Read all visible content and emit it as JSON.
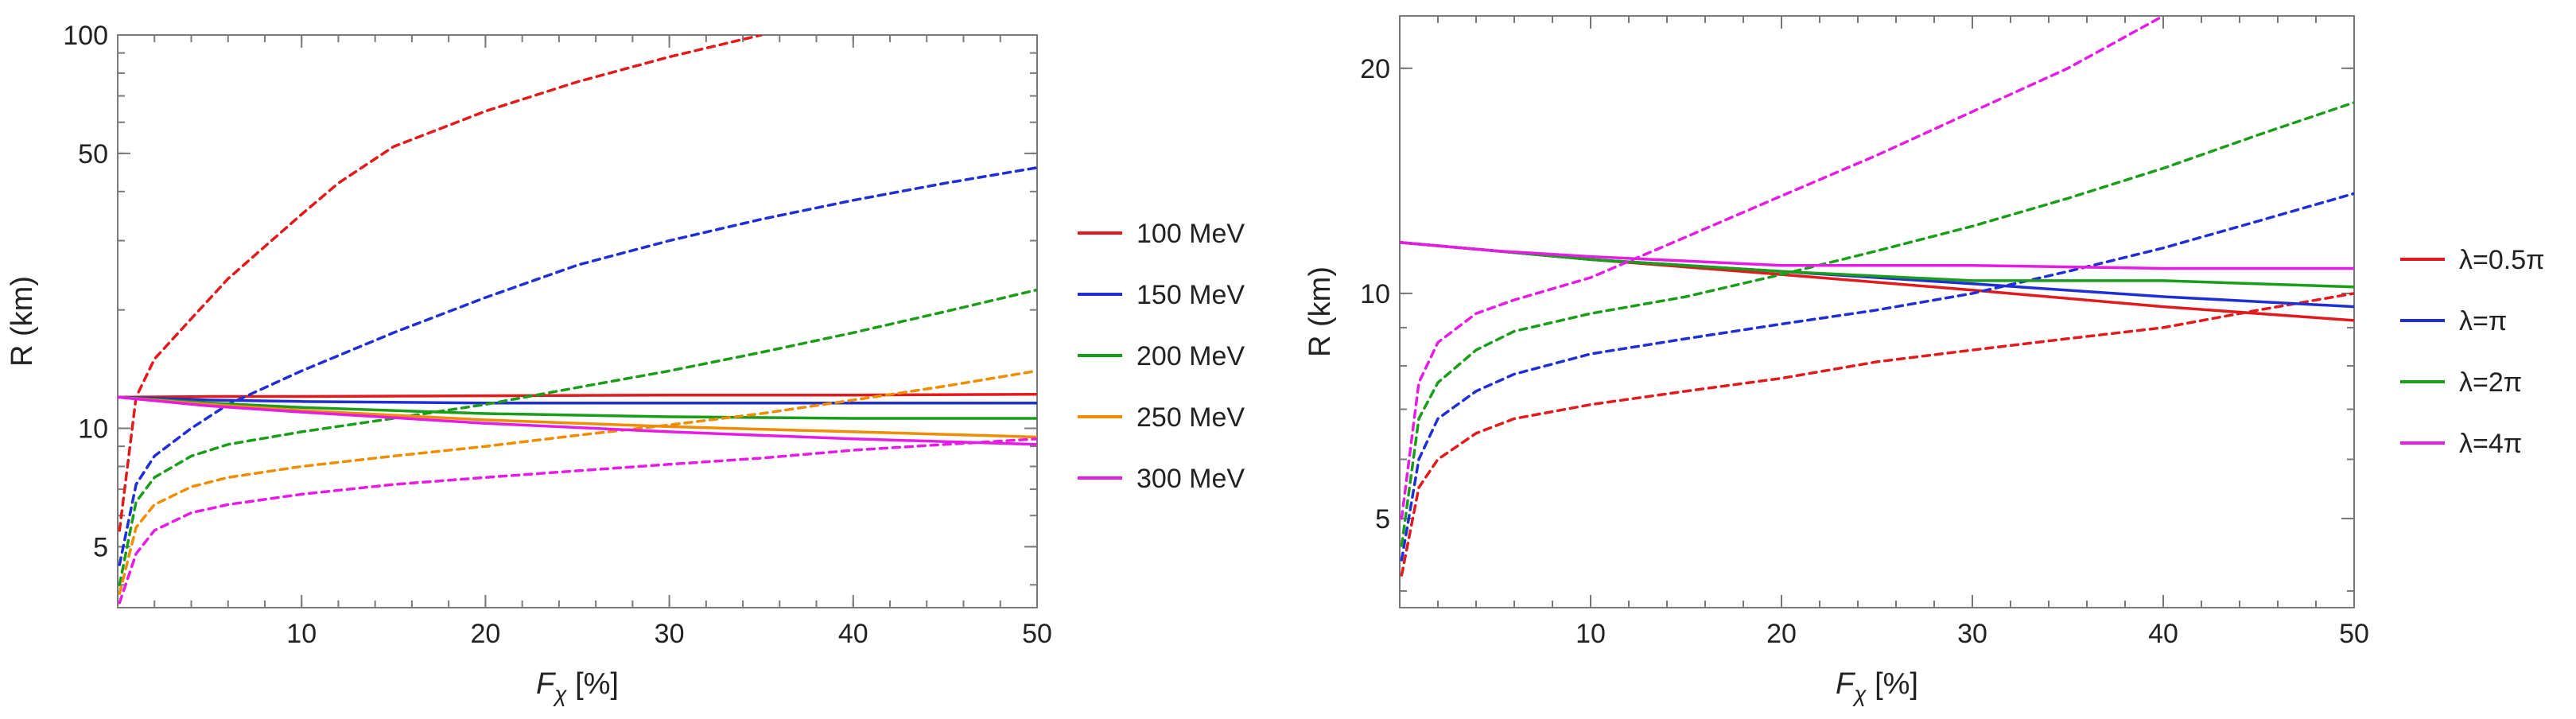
{
  "chart_data": [
    {
      "type": "line",
      "yscale": "log",
      "xlabel_main": "F",
      "xlabel_sub": "χ",
      "xlabel_unit": " [%]",
      "ylabel": "R (km)",
      "xlim": [
        0,
        50
      ],
      "ylim": [
        3.5,
        100
      ],
      "xticks": [
        10,
        20,
        30,
        40,
        50
      ],
      "xtick_labels": [
        "10",
        "20",
        "30",
        "40",
        "50"
      ],
      "yticks": [
        5,
        10,
        50,
        100
      ],
      "ytick_labels": [
        "5",
        "10",
        "50",
        "100"
      ],
      "legend_position": "right",
      "series": [
        {
          "name": "100 MeV",
          "color": "#e31a1c",
          "style": "solid",
          "x": [
            0,
            5,
            10,
            20,
            30,
            40,
            50
          ],
          "y": [
            12.0,
            12.05,
            12.05,
            12.1,
            12.15,
            12.15,
            12.2
          ]
        },
        {
          "name": "100 MeV",
          "color": "#e31a1c",
          "style": "dashed",
          "x": [
            0.1,
            1,
            2,
            4,
            6,
            8,
            10,
            12,
            15,
            20,
            25,
            30,
            35
          ],
          "y": [
            5.5,
            12,
            15,
            19,
            24,
            29,
            35,
            42,
            52,
            64,
            76,
            88,
            100
          ]
        },
        {
          "name": "150 MeV",
          "color": "#1f2fd6",
          "style": "solid",
          "x": [
            0,
            5,
            10,
            20,
            30,
            40,
            50
          ],
          "y": [
            12.0,
            11.8,
            11.7,
            11.6,
            11.6,
            11.6,
            11.6
          ]
        },
        {
          "name": "150 MeV",
          "color": "#1f2fd6",
          "style": "dashed",
          "x": [
            0.1,
            1,
            2,
            4,
            6,
            10,
            15,
            20,
            25,
            30,
            35,
            40,
            45,
            50
          ],
          "y": [
            4.5,
            7.2,
            8.5,
            10,
            11.5,
            14,
            17.5,
            21.5,
            26,
            30,
            34,
            38,
            42,
            46
          ]
        },
        {
          "name": "200 MeV",
          "color": "#1a9e1a",
          "style": "solid",
          "x": [
            0,
            5,
            10,
            20,
            30,
            40,
            50
          ],
          "y": [
            12.0,
            11.6,
            11.3,
            10.9,
            10.7,
            10.6,
            10.6
          ]
        },
        {
          "name": "200 MeV",
          "color": "#1a9e1a",
          "style": "dashed",
          "x": [
            0.1,
            1,
            2,
            4,
            6,
            10,
            15,
            20,
            25,
            30,
            35,
            40,
            45,
            50
          ],
          "y": [
            4.0,
            6.5,
            7.5,
            8.5,
            9.1,
            9.8,
            10.6,
            11.5,
            12.7,
            14.0,
            15.6,
            17.5,
            19.8,
            22.5
          ]
        },
        {
          "name": "250 MeV",
          "color": "#f08c00",
          "style": "solid",
          "x": [
            0,
            5,
            10,
            20,
            30,
            40,
            50
          ],
          "y": [
            12.0,
            11.5,
            11.1,
            10.5,
            10.1,
            9.8,
            9.5
          ]
        },
        {
          "name": "250 MeV",
          "color": "#f08c00",
          "style": "dashed",
          "x": [
            0.1,
            1,
            2,
            4,
            6,
            10,
            15,
            20,
            25,
            30,
            35,
            40,
            45,
            50
          ],
          "y": [
            3.8,
            5.6,
            6.4,
            7.1,
            7.5,
            8.0,
            8.5,
            9.0,
            9.6,
            10.2,
            10.9,
            11.8,
            12.8,
            14.0
          ]
        },
        {
          "name": "300 MeV",
          "color": "#e61ce6",
          "style": "solid",
          "x": [
            0,
            5,
            10,
            20,
            30,
            40,
            50
          ],
          "y": [
            12.0,
            11.4,
            11.0,
            10.3,
            9.8,
            9.4,
            9.1
          ]
        },
        {
          "name": "300 MeV",
          "color": "#e61ce6",
          "style": "dashed",
          "x": [
            0.1,
            1,
            2,
            4,
            6,
            10,
            15,
            20,
            25,
            30,
            35,
            40,
            45,
            50
          ],
          "y": [
            3.6,
            4.8,
            5.5,
            6.1,
            6.4,
            6.8,
            7.2,
            7.5,
            7.8,
            8.1,
            8.4,
            8.8,
            9.1,
            9.4
          ]
        }
      ],
      "legend": [
        {
          "label": "100 MeV",
          "color": "#e31a1c"
        },
        {
          "label": "150 MeV",
          "color": "#1f2fd6"
        },
        {
          "label": "200 MeV",
          "color": "#1a9e1a"
        },
        {
          "label": "250 MeV",
          "color": "#f08c00"
        },
        {
          "label": "300 MeV",
          "color": "#e61ce6"
        }
      ]
    },
    {
      "type": "line",
      "yscale": "log",
      "xlabel_main": "F",
      "xlabel_sub": "χ",
      "xlabel_unit": " [%]",
      "ylabel": "R (km)",
      "xlim": [
        0,
        50
      ],
      "ylim": [
        3.8,
        23.5
      ],
      "xticks": [
        10,
        20,
        30,
        40,
        50
      ],
      "xtick_labels": [
        "10",
        "20",
        "30",
        "40",
        "50"
      ],
      "yticks": [
        5,
        10,
        20
      ],
      "ytick_labels": [
        "5",
        "10",
        "20"
      ],
      "legend_position": "right",
      "series": [
        {
          "name": "λ=0.5π",
          "color": "#e31a1c",
          "style": "solid",
          "x": [
            0,
            5,
            10,
            20,
            30,
            40,
            50
          ],
          "y": [
            11.7,
            11.4,
            11.1,
            10.6,
            10.1,
            9.6,
            9.2
          ]
        },
        {
          "name": "λ=0.5π",
          "color": "#e31a1c",
          "style": "dashed",
          "x": [
            0.1,
            1,
            2,
            4,
            6,
            10,
            15,
            20,
            25,
            30,
            35,
            40,
            45,
            50
          ],
          "y": [
            4.2,
            5.5,
            6.0,
            6.5,
            6.8,
            7.1,
            7.4,
            7.7,
            8.1,
            8.4,
            8.7,
            9.0,
            9.5,
            10.0
          ]
        },
        {
          "name": "λ=π",
          "color": "#1f2fd6",
          "style": "solid",
          "x": [
            0,
            5,
            10,
            20,
            30,
            40,
            50
          ],
          "y": [
            11.7,
            11.4,
            11.1,
            10.7,
            10.3,
            9.9,
            9.6
          ]
        },
        {
          "name": "λ=π",
          "color": "#1f2fd6",
          "style": "dashed",
          "x": [
            0.1,
            1,
            2,
            4,
            6,
            10,
            15,
            20,
            25,
            30,
            35,
            40,
            45,
            50
          ],
          "y": [
            4.4,
            6.0,
            6.8,
            7.4,
            7.8,
            8.3,
            8.7,
            9.1,
            9.5,
            10.0,
            10.7,
            11.5,
            12.5,
            13.6
          ]
        },
        {
          "name": "λ=2π",
          "color": "#1a9e1a",
          "style": "solid",
          "x": [
            0,
            5,
            10,
            20,
            30,
            40,
            50
          ],
          "y": [
            11.7,
            11.4,
            11.1,
            10.7,
            10.4,
            10.4,
            10.2
          ]
        },
        {
          "name": "λ=2π",
          "color": "#1a9e1a",
          "style": "dashed",
          "x": [
            0.1,
            1,
            2,
            4,
            6,
            10,
            15,
            20,
            25,
            30,
            35,
            40,
            45,
            50
          ],
          "y": [
            4.6,
            6.8,
            7.6,
            8.4,
            8.9,
            9.4,
            9.9,
            10.6,
            11.4,
            12.3,
            13.4,
            14.7,
            16.3,
            18.0
          ]
        },
        {
          "name": "λ=4π",
          "color": "#e61ce6",
          "style": "solid",
          "x": [
            0,
            5,
            10,
            20,
            30,
            40,
            50
          ],
          "y": [
            11.7,
            11.4,
            11.2,
            10.9,
            10.9,
            10.8,
            10.8
          ]
        },
        {
          "name": "λ=4π",
          "color": "#e61ce6",
          "style": "dashed",
          "x": [
            0.1,
            1,
            2,
            4,
            6,
            10,
            15,
            20,
            25,
            30,
            35,
            40
          ],
          "y": [
            5.0,
            7.6,
            8.6,
            9.4,
            9.8,
            10.5,
            11.9,
            13.5,
            15.3,
            17.5,
            20.0,
            23.5
          ]
        }
      ],
      "legend": [
        {
          "label": "λ=0.5π",
          "color": "#e31a1c"
        },
        {
          "label": "λ=π",
          "color": "#1f2fd6"
        },
        {
          "label": "λ=2π",
          "color": "#1a9e1a"
        },
        {
          "label": "λ=4π",
          "color": "#e61ce6"
        }
      ]
    }
  ]
}
